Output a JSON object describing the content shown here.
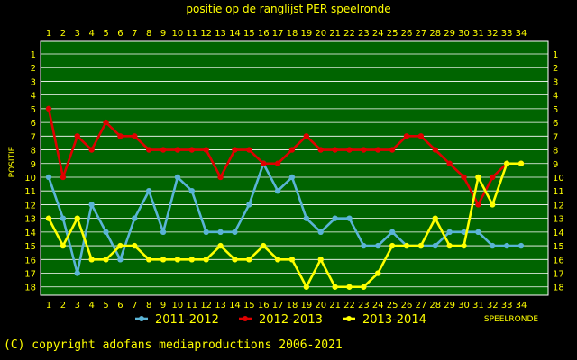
{
  "page": {
    "copyright": "(C) copyright adofans mediaproductions 2006-2021"
  },
  "chart_data": {
    "type": "line",
    "title": "positie op de ranglijst PER speelronde",
    "xlabel": "SPEELRONDE",
    "ylabel": "POSITIE",
    "x": [
      1,
      2,
      3,
      4,
      5,
      6,
      7,
      8,
      9,
      10,
      11,
      12,
      13,
      14,
      15,
      16,
      17,
      18,
      19,
      20,
      21,
      22,
      23,
      24,
      25,
      26,
      27,
      28,
      29,
      30,
      31,
      32,
      33,
      34
    ],
    "xlim": [
      1,
      34
    ],
    "ylim": [
      1,
      18
    ],
    "y_inverted": true,
    "grid": true,
    "legend_position": "bottom",
    "colors": {
      "background": "#000000",
      "plot": "#006400",
      "grid": "#ffffff",
      "text": "#ffff00"
    },
    "series": [
      {
        "name": "2011-2012",
        "color": "#5ab4d6",
        "values": [
          10,
          13,
          17,
          12,
          14,
          16,
          13,
          11,
          14,
          10,
          11,
          14,
          14,
          14,
          12,
          9,
          11,
          10,
          13,
          14,
          13,
          13,
          15,
          15,
          14,
          15,
          15,
          15,
          14,
          14,
          14,
          15,
          15,
          15
        ]
      },
      {
        "name": "2012-2013",
        "color": "#e00000",
        "values": [
          5,
          10,
          7,
          8,
          6,
          7,
          7,
          8,
          8,
          8,
          8,
          8,
          10,
          8,
          8,
          9,
          9,
          8,
          7,
          8,
          8,
          8,
          8,
          8,
          8,
          7,
          7,
          8,
          9,
          10,
          12,
          10,
          9,
          9
        ]
      },
      {
        "name": "2013-2014",
        "color": "#ffff00",
        "values": [
          13,
          15,
          13,
          16,
          16,
          15,
          15,
          16,
          16,
          16,
          16,
          16,
          15,
          16,
          16,
          15,
          16,
          16,
          18,
          16,
          18,
          18,
          18,
          17,
          15,
          15,
          15,
          13,
          15,
          15,
          10,
          12,
          9,
          9
        ]
      }
    ]
  }
}
